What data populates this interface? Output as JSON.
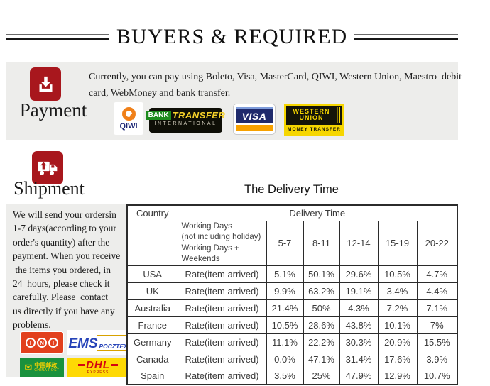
{
  "header": {
    "title": "BUYERS & REQUIRED"
  },
  "payment": {
    "section_label": "Payment",
    "description_lines": [
      "Currently, you can pay using Boleto, Visa, MasterCard, QIWI, Western Union, Maestro  debit",
      "card, WebMoney and bank transfer."
    ],
    "logos": {
      "qiwi": "QIWI",
      "bank_transfer": {
        "bank": "BANK",
        "transfer": "TRANSFER",
        "international": "INTERNATIONAL"
      },
      "visa": "VISA",
      "western_union": {
        "western": "WESTERN",
        "union": "UNION",
        "money_transfer": "MONEY TRANSFER"
      }
    }
  },
  "shipment": {
    "section_label": "Shipment",
    "note_lines": [
      "We will send your ordersin",
      "1-7 days(according to your",
      "order's quantity) after the",
      "payment. When you receive",
      " the items you ordered, in",
      "24  hours, please check it",
      "carefully. Please  contact",
      "us directly if you have any",
      "problems."
    ],
    "carriers": {
      "tnt_letters": [
        "T",
        "N",
        "T"
      ],
      "ems": "EMS",
      "pocztex": "POCZTEX",
      "china_post_cn": "中国邮政",
      "china_post_en": "CHINA POST",
      "dhl": "DHL",
      "dhl_sub": "EXPRESS"
    }
  },
  "delivery": {
    "title": "The Delivery Time",
    "columns": {
      "country": "Country",
      "delivery_time": "Delivery Time"
    },
    "working_days_lines": [
      "Working Days",
      "(not including holiday)",
      "Working Days + Weekends"
    ],
    "ranges": [
      "5-7",
      "8-11",
      "12-14",
      "15-19",
      "20-22"
    ],
    "rate_label": "Rate(item arrived)",
    "rows": [
      {
        "country": "USA",
        "rates": [
          "5.1%",
          "50.1%",
          "29.6%",
          "10.5%",
          "4.7%"
        ]
      },
      {
        "country": "UK",
        "rates": [
          "9.9%",
          "63.2%",
          "19.1%",
          "3.4%",
          "4.4%"
        ]
      },
      {
        "country": "Australia",
        "rates": [
          "21.4%",
          "50%",
          "4.3%",
          "7.2%",
          "7.1%"
        ]
      },
      {
        "country": "France",
        "rates": [
          "10.5%",
          "28.6%",
          "43.8%",
          "10.1%",
          "7%"
        ]
      },
      {
        "country": "Germany",
        "rates": [
          "11.1%",
          "22.2%",
          "30.3%",
          "20.9%",
          "15.5%"
        ]
      },
      {
        "country": "Canada",
        "rates": [
          "0.0%",
          "47.1%",
          "31.4%",
          "17.6%",
          "3.9%"
        ]
      },
      {
        "country": "Spain",
        "rates": [
          "3.5%",
          "25%",
          "47.9%",
          "12.9%",
          "10.7%"
        ]
      }
    ]
  },
  "colors": {
    "accent_red": "#a8171d",
    "panel_gray": "#ededeb",
    "qiwi_orange": "#f08019",
    "visa_navy": "#1f2a6b",
    "visa_orange": "#f7a100",
    "western_union_yellow": "#f6d600",
    "tnt_red": "#e2401d",
    "ems_blue": "#2643b8",
    "china_post_green": "#19913d",
    "dhl_yellow": "#fed904",
    "dhl_red": "#d40511",
    "table_border": "#2b2b2b"
  }
}
